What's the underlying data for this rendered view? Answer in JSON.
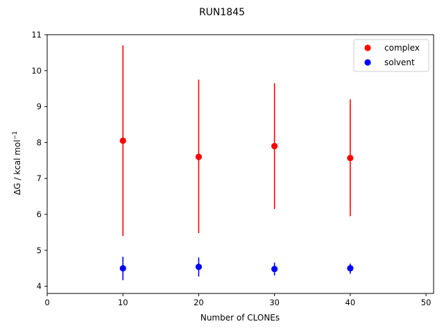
{
  "chart_data": {
    "type": "scatter",
    "title": "RUN1845",
    "xlabel": "Number of CLONEs",
    "ylabel_main": "ΔG / kcal mol",
    "ylabel_sup": "−1",
    "xlim": [
      0,
      51
    ],
    "ylim": [
      3.8,
      11
    ],
    "xticks": [
      0,
      10,
      20,
      30,
      40,
      50
    ],
    "yticks": [
      4,
      5,
      6,
      7,
      8,
      9,
      10,
      11
    ],
    "legend_position": "top-right",
    "series": [
      {
        "name": "complex",
        "color": "#ff0000",
        "x": [
          10,
          20,
          30,
          40
        ],
        "y": [
          8.05,
          7.6,
          7.9,
          7.57
        ],
        "yerr_low": [
          5.4,
          5.48,
          6.15,
          5.95
        ],
        "yerr_high": [
          10.7,
          9.75,
          9.65,
          9.2
        ]
      },
      {
        "name": "solvent",
        "color": "#0000ff",
        "x": [
          10,
          20,
          30,
          40
        ],
        "y": [
          4.5,
          4.54,
          4.48,
          4.5
        ],
        "yerr_low": [
          4.17,
          4.27,
          4.3,
          4.35
        ],
        "yerr_high": [
          4.82,
          4.8,
          4.66,
          4.63
        ]
      }
    ]
  }
}
